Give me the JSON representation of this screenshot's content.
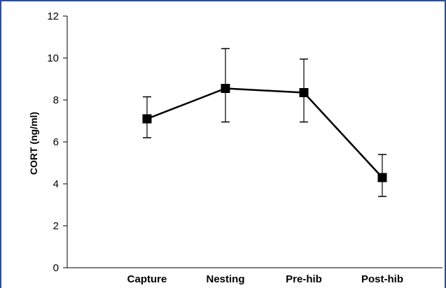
{
  "chart_data": {
    "type": "line",
    "title": "",
    "xlabel": "",
    "ylabel": "CORT (ng/ml)",
    "ylim": [
      0,
      12
    ],
    "yticks": [
      0,
      2,
      4,
      6,
      8,
      10,
      12
    ],
    "categories": [
      "Capture",
      "Nesting",
      "Pre-hib",
      "Post-hib"
    ],
    "series": [
      {
        "values": [
          7.1,
          8.55,
          8.35,
          4.3
        ],
        "err_upper": [
          8.15,
          10.45,
          9.95,
          5.4
        ],
        "err_lower": [
          6.2,
          6.95,
          6.95,
          3.4
        ]
      }
    ],
    "grid": false,
    "legend": "none",
    "colors": {
      "line": "#000000",
      "frame": "#2f4f8f"
    }
  }
}
